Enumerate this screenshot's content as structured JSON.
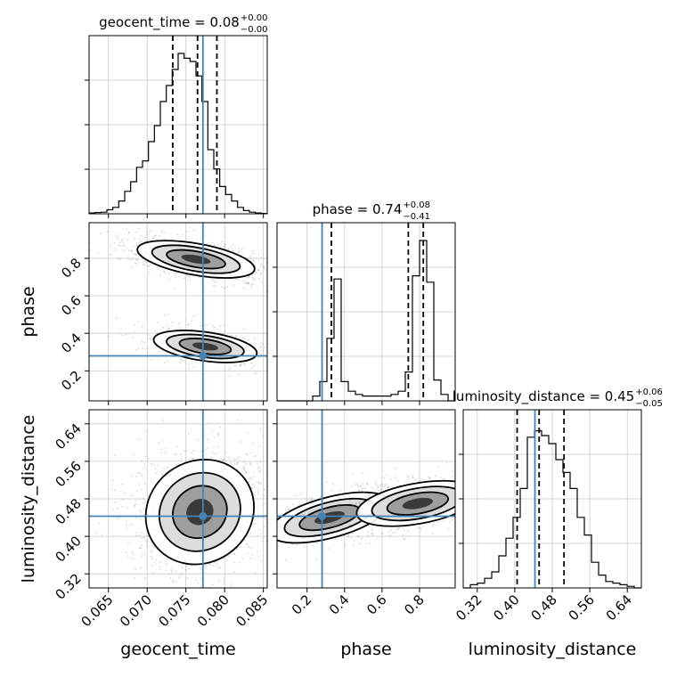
{
  "chart_data": {
    "type": "corner",
    "parameters": [
      "geocent_time",
      "phase",
      "luminosity_distance"
    ],
    "axis_labels": {
      "geocent_time": "geocent_time",
      "phase": "phase",
      "luminosity_distance": "luminosity_distance"
    },
    "ranges": {
      "geocent_time": [
        0.0625,
        0.0855
      ],
      "phase": [
        0.04,
        0.99
      ],
      "luminosity_distance": [
        0.29,
        0.67
      ]
    },
    "ticks": {
      "geocent_time": [
        0.065,
        0.07,
        0.075,
        0.08,
        0.085
      ],
      "geocent_time_labels": [
        "0.065",
        "0.070",
        "0.075",
        "0.080",
        "0.085"
      ],
      "phase": [
        0.2,
        0.4,
        0.6,
        0.8
      ],
      "phase_labels": [
        "0.2",
        "0.4",
        "0.6",
        "0.8"
      ],
      "luminosity_distance": [
        0.32,
        0.4,
        0.48,
        0.56,
        0.64
      ],
      "luminosity_distance_labels": [
        "0.32",
        "0.40",
        "0.48",
        "0.56",
        "0.64"
      ]
    },
    "truths": {
      "geocent_time": 0.0772,
      "phase": 0.28,
      "luminosity_distance": 0.443
    },
    "titles": [
      {
        "param": "geocent_time",
        "text": "geocent_time = 0.08",
        "plus": "+0.00",
        "minus": "−0.00"
      },
      {
        "param": "phase",
        "text": "phase = 0.74",
        "plus": "+0.08",
        "minus": "−0.41"
      },
      {
        "param": "luminosity_distance",
        "text": "luminosity_distance = 0.45",
        "plus": "+0.06",
        "minus": "−0.05"
      }
    ],
    "quantiles": {
      "geocent_time": [
        0.0733,
        0.0765,
        0.079
      ],
      "phase": [
        0.33,
        0.74,
        0.82
      ],
      "luminosity_distance": [
        0.405,
        0.452,
        0.505
      ]
    },
    "histograms": {
      "geocent_time": {
        "counts": [
          0.005,
          0.008,
          0.01,
          0.025,
          0.04,
          0.08,
          0.14,
          0.2,
          0.29,
          0.33,
          0.45,
          0.55,
          0.7,
          0.8,
          0.9,
          1.0,
          0.97,
          0.95,
          0.86,
          0.7,
          0.4,
          0.28,
          0.17,
          0.12,
          0.08,
          0.04,
          0.02,
          0.01,
          0.005,
          0.002
        ]
      },
      "phase": {
        "counts": [
          0.0,
          0.0,
          0.0,
          0.0,
          0.0,
          0.03,
          0.12,
          0.39,
          0.76,
          0.12,
          0.06,
          0.04,
          0.03,
          0.03,
          0.03,
          0.03,
          0.04,
          0.06,
          0.18,
          0.78,
          1.0,
          0.74,
          0.13,
          0.04,
          0.0
        ]
      },
      "luminosity_distance": {
        "counts": [
          0.0,
          0.02,
          0.03,
          0.06,
          0.1,
          0.2,
          0.31,
          0.44,
          0.62,
          0.94,
          0.98,
          0.95,
          0.9,
          0.8,
          0.72,
          0.62,
          0.44,
          0.33,
          0.16,
          0.08,
          0.04,
          0.03,
          0.02,
          0.01,
          0.0
        ]
      }
    },
    "panels_2d": [
      {
        "x": "geocent_time",
        "y": "phase",
        "clusters": [
          {
            "cx": 0.0763,
            "cy": 0.795,
            "sx": 0.0032,
            "sy": 0.035,
            "rot": 10,
            "weight": 0.65
          },
          {
            "cx": 0.0775,
            "cy": 0.33,
            "sx": 0.0028,
            "sy": 0.032,
            "rot": 8,
            "weight": 0.35
          }
        ]
      },
      {
        "x": "geocent_time",
        "y": "luminosity_distance",
        "clusters": [
          {
            "cx": 0.0768,
            "cy": 0.452,
            "sx": 0.003,
            "sy": 0.045,
            "rot": -35,
            "weight": 1.0
          }
        ]
      },
      {
        "x": "phase",
        "y": "luminosity_distance",
        "clusters": [
          {
            "cx": 0.32,
            "cy": 0.44,
            "sx": 0.045,
            "sy": 0.055,
            "rot": 75,
            "weight": 0.45
          },
          {
            "cx": 0.79,
            "cy": 0.47,
            "sx": 0.045,
            "sy": 0.055,
            "rot": 80,
            "weight": 0.55
          }
        ]
      }
    ],
    "truth_color": "#4682b4",
    "grid": true
  }
}
